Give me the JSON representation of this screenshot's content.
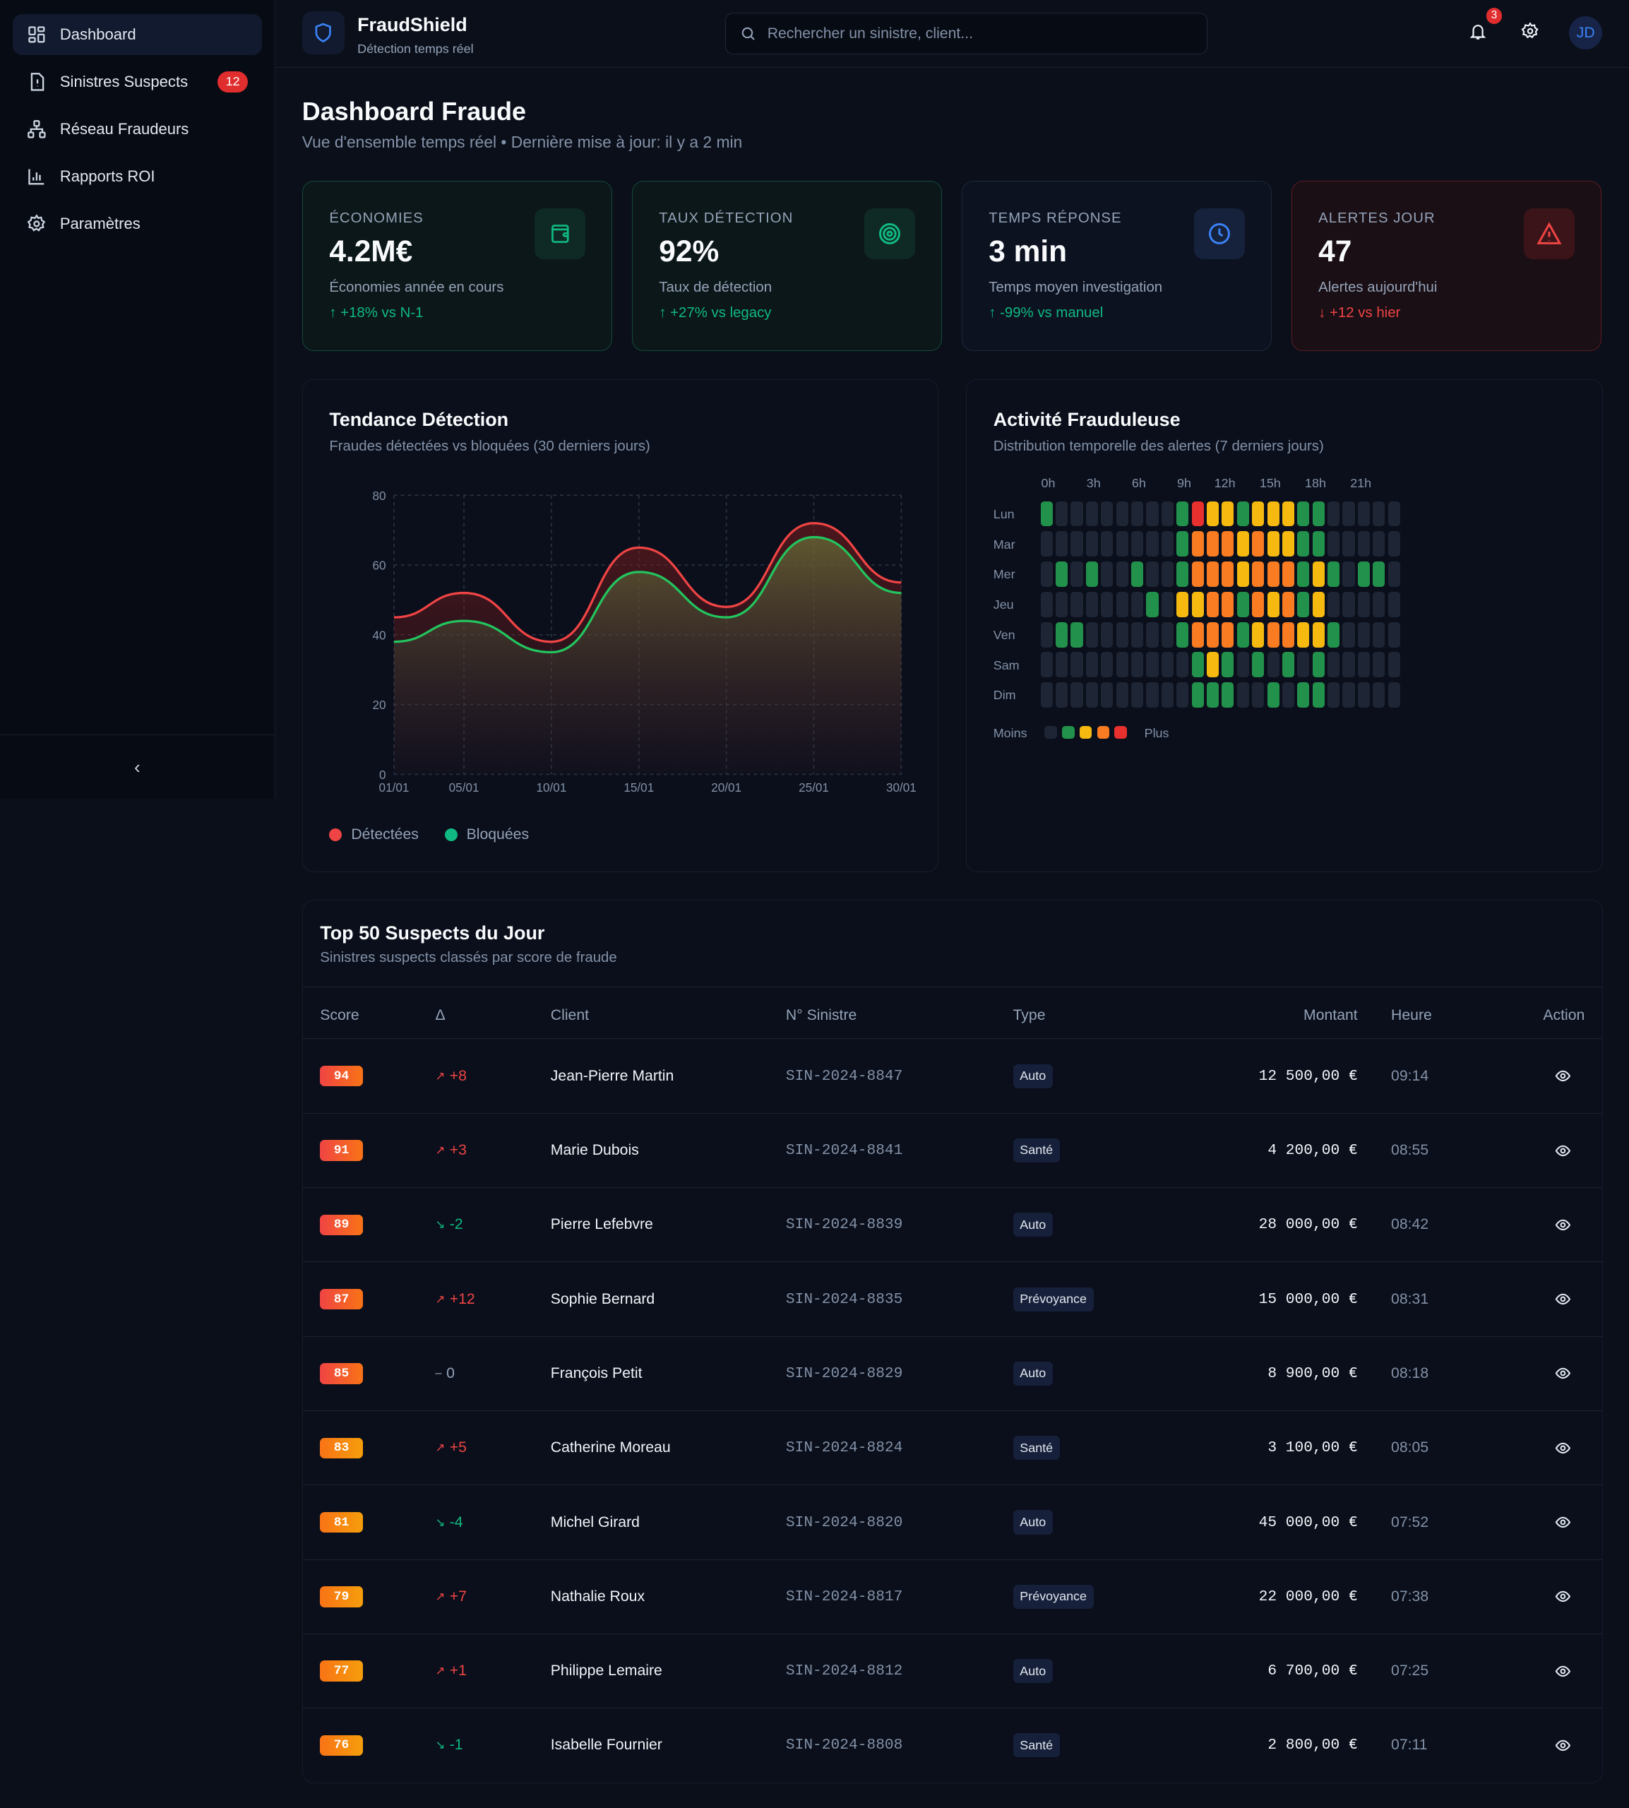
{
  "sidebar": {
    "items": [
      {
        "label": "Dashboard",
        "icon": "dashboard-icon"
      },
      {
        "label": "Sinistres Suspects",
        "icon": "file-alert-icon",
        "badge": "12"
      },
      {
        "label": "Réseau Fraudeurs",
        "icon": "network-icon"
      },
      {
        "label": "Rapports ROI",
        "icon": "bar-chart-icon"
      },
      {
        "label": "Paramètres",
        "icon": "gear-icon"
      }
    ],
    "collapse": "‹"
  },
  "header": {
    "brand": "FraudShield",
    "tagline": "Détection temps réel",
    "search_placeholder": "Rechercher un sinistre, client...",
    "notifications": "3",
    "avatar": "JD"
  },
  "page": {
    "title": "Dashboard Fraude",
    "subtitle": "Vue d'ensemble temps réel • Dernière mise à jour: il y a 2 min"
  },
  "kpis": [
    {
      "label": "ÉCONOMIES",
      "value": "4.2M€",
      "desc": "Économies année en cours",
      "trend": "↑ +18% vs N-1",
      "trend_color": "#10b981",
      "icon": "wallet-icon"
    },
    {
      "label": "TAUX DÉTECTION",
      "value": "92%",
      "desc": "Taux de détection",
      "trend": "↑ +27% vs legacy",
      "trend_color": "#10b981",
      "icon": "target-icon"
    },
    {
      "label": "TEMPS RÉPONSE",
      "value": "3 min",
      "desc": "Temps moyen investigation",
      "trend": "↑ -99% vs manuel",
      "trend_color": "#10b981",
      "icon": "clock-icon"
    },
    {
      "label": "ALERTES JOUR",
      "value": "47",
      "desc": "Alertes aujourd'hui",
      "trend": "↓ +12 vs hier",
      "trend_color": "#ef4444",
      "icon": "alert-triangle-icon"
    }
  ],
  "chart_data": {
    "type": "area",
    "title": "Tendance Détection",
    "subtitle": "Fraudes détectées vs bloquées (30 derniers jours)",
    "x": [
      "01/01",
      "05/01",
      "10/01",
      "15/01",
      "20/01",
      "25/01",
      "30/01"
    ],
    "x_days": [
      1,
      5,
      10,
      15,
      20,
      25,
      30
    ],
    "ylim": [
      0,
      80
    ],
    "yticks": [
      0,
      20,
      40,
      60,
      80
    ],
    "grid": true,
    "legend": "bottom-left",
    "series": [
      {
        "name": "Détectées",
        "color": "#ef4444",
        "values": [
          45,
          52,
          38,
          65,
          48,
          72,
          55
        ]
      },
      {
        "name": "Bloquées",
        "color": "#22c55e",
        "values": [
          38,
          44,
          35,
          58,
          45,
          68,
          52
        ]
      }
    ]
  },
  "heatmap": {
    "title": "Activité Frauduleuse",
    "subtitle": "Distribution temporelle des alertes (7 derniers jours)",
    "hour_labels": [
      "0h",
      "3h",
      "6h",
      "9h",
      "12h",
      "15h",
      "18h",
      "21h"
    ],
    "days": [
      "Lun",
      "Mar",
      "Mer",
      "Jeu",
      "Ven",
      "Sam",
      "Dim"
    ],
    "levels": [
      [
        1,
        0,
        0,
        0,
        0,
        0,
        0,
        0,
        0,
        1,
        4,
        2,
        2,
        1,
        2,
        2,
        2,
        1,
        1,
        0,
        0,
        0,
        0,
        0
      ],
      [
        0,
        0,
        0,
        0,
        0,
        0,
        0,
        0,
        0,
        1,
        3,
        3,
        3,
        2,
        3,
        2,
        2,
        1,
        1,
        0,
        0,
        0,
        0,
        0
      ],
      [
        0,
        1,
        0,
        1,
        0,
        0,
        1,
        0,
        0,
        1,
        3,
        3,
        3,
        2,
        3,
        3,
        3,
        1,
        2,
        1,
        0,
        1,
        1,
        0
      ],
      [
        0,
        0,
        0,
        0,
        0,
        0,
        0,
        1,
        0,
        2,
        2,
        3,
        3,
        1,
        3,
        2,
        3,
        1,
        2,
        0,
        0,
        0,
        0,
        0
      ],
      [
        0,
        1,
        1,
        0,
        0,
        0,
        0,
        0,
        0,
        1,
        3,
        3,
        3,
        1,
        2,
        3,
        3,
        2,
        2,
        1,
        0,
        0,
        0,
        0
      ],
      [
        0,
        0,
        0,
        0,
        0,
        0,
        0,
        0,
        0,
        0,
        1,
        2,
        1,
        0,
        1,
        0,
        1,
        0,
        1,
        0,
        0,
        0,
        0,
        0
      ],
      [
        0,
        0,
        0,
        0,
        0,
        0,
        0,
        0,
        0,
        0,
        1,
        1,
        1,
        0,
        0,
        1,
        0,
        1,
        1,
        0,
        0,
        0,
        0,
        0
      ]
    ],
    "colors": [
      "#1e2535",
      "#22914b",
      "#f5b90f",
      "#f97b22",
      "#e8302f"
    ],
    "legend_less": "Moins",
    "legend_more": "Plus"
  },
  "table": {
    "title": "Top 50 Suspects du Jour",
    "subtitle": "Sinistres suspects classés par score de fraude",
    "columns": [
      "Score",
      "Δ",
      "Client",
      "N° Sinistre",
      "Type",
      "Montant",
      "Heure",
      "Action"
    ],
    "rows": [
      {
        "score": "94",
        "delta": "+8",
        "dir": "up",
        "client": "Jean-Pierre Martin",
        "id": "SIN-2024-8847",
        "type": "Auto",
        "amount": "12 500,00 €",
        "time": "09:14"
      },
      {
        "score": "91",
        "delta": "+3",
        "dir": "up",
        "client": "Marie Dubois",
        "id": "SIN-2024-8841",
        "type": "Santé",
        "amount": "4 200,00 €",
        "time": "08:55"
      },
      {
        "score": "89",
        "delta": "-2",
        "dir": "down",
        "client": "Pierre Lefebvre",
        "id": "SIN-2024-8839",
        "type": "Auto",
        "amount": "28 000,00 €",
        "time": "08:42"
      },
      {
        "score": "87",
        "delta": "+12",
        "dir": "up",
        "client": "Sophie Bernard",
        "id": "SIN-2024-8835",
        "type": "Prévoyance",
        "amount": "15 000,00 €",
        "time": "08:31"
      },
      {
        "score": "85",
        "delta": "0",
        "dir": "flat",
        "client": "François Petit",
        "id": "SIN-2024-8829",
        "type": "Auto",
        "amount": "8 900,00 €",
        "time": "08:18"
      },
      {
        "score": "83",
        "delta": "+5",
        "dir": "up",
        "client": "Catherine Moreau",
        "id": "SIN-2024-8824",
        "type": "Santé",
        "amount": "3 100,00 €",
        "time": "08:05"
      },
      {
        "score": "81",
        "delta": "-4",
        "dir": "down",
        "client": "Michel Girard",
        "id": "SIN-2024-8820",
        "type": "Auto",
        "amount": "45 000,00 €",
        "time": "07:52"
      },
      {
        "score": "79",
        "delta": "+7",
        "dir": "up",
        "client": "Nathalie Roux",
        "id": "SIN-2024-8817",
        "type": "Prévoyance",
        "amount": "22 000,00 €",
        "time": "07:38"
      },
      {
        "score": "77",
        "delta": "+1",
        "dir": "up",
        "client": "Philippe Lemaire",
        "id": "SIN-2024-8812",
        "type": "Auto",
        "amount": "6 700,00 €",
        "time": "07:25"
      },
      {
        "score": "76",
        "delta": "-1",
        "dir": "down",
        "client": "Isabelle Fournier",
        "id": "SIN-2024-8808",
        "type": "Santé",
        "amount": "2 800,00 €",
        "time": "07:11"
      }
    ]
  }
}
